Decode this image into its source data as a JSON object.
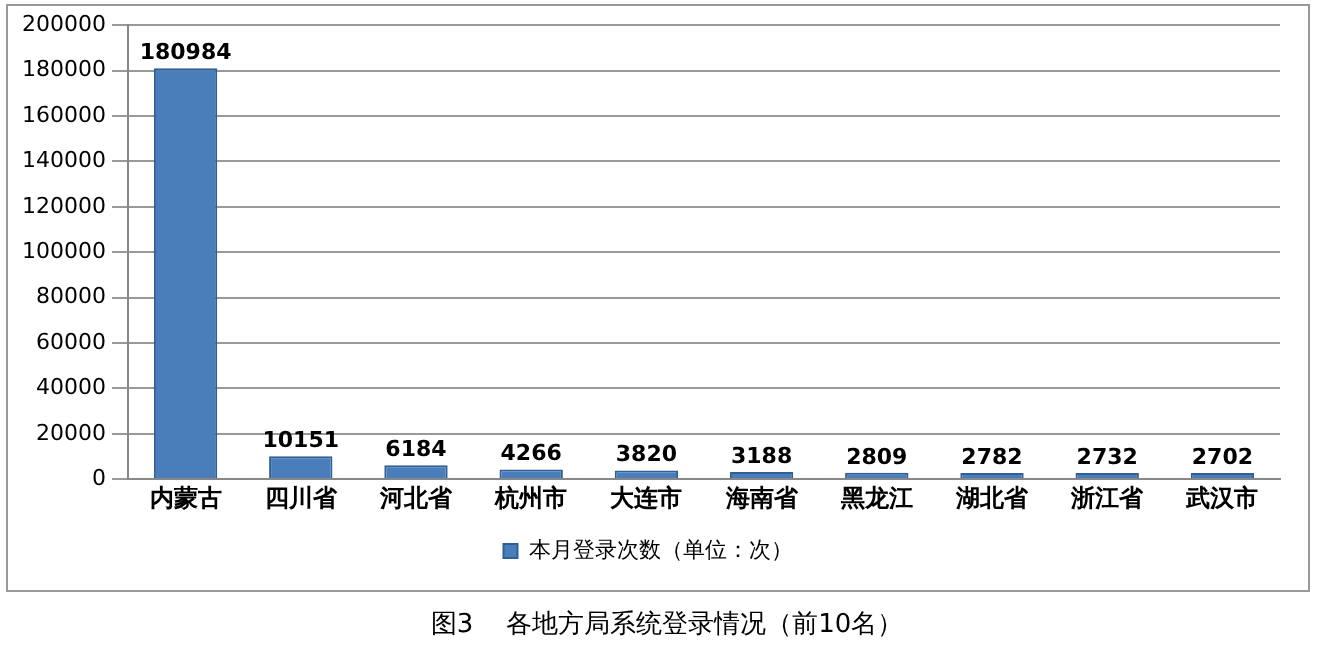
{
  "chart_data": {
    "type": "bar",
    "categories": [
      "内蒙古",
      "四川省",
      "河北省",
      "杭州市",
      "大连市",
      "海南省",
      "黑龙江",
      "湖北省",
      "浙江省",
      "武汉市"
    ],
    "series": [
      {
        "name": "本月登录次数（单位：次）",
        "color": "#4a7ebb",
        "values": [
          180984,
          10151,
          6184,
          4266,
          3820,
          3188,
          2809,
          2782,
          2732,
          2702
        ]
      }
    ],
    "ylim": [
      0,
      200000
    ],
    "yticks": [
      0,
      20000,
      40000,
      60000,
      80000,
      100000,
      120000,
      140000,
      160000,
      180000,
      200000
    ],
    "grid": "y",
    "legend": "bottom",
    "data_labels": true,
    "annotations": [
      "图3    各地方局系统登录情况（前10名）"
    ]
  }
}
